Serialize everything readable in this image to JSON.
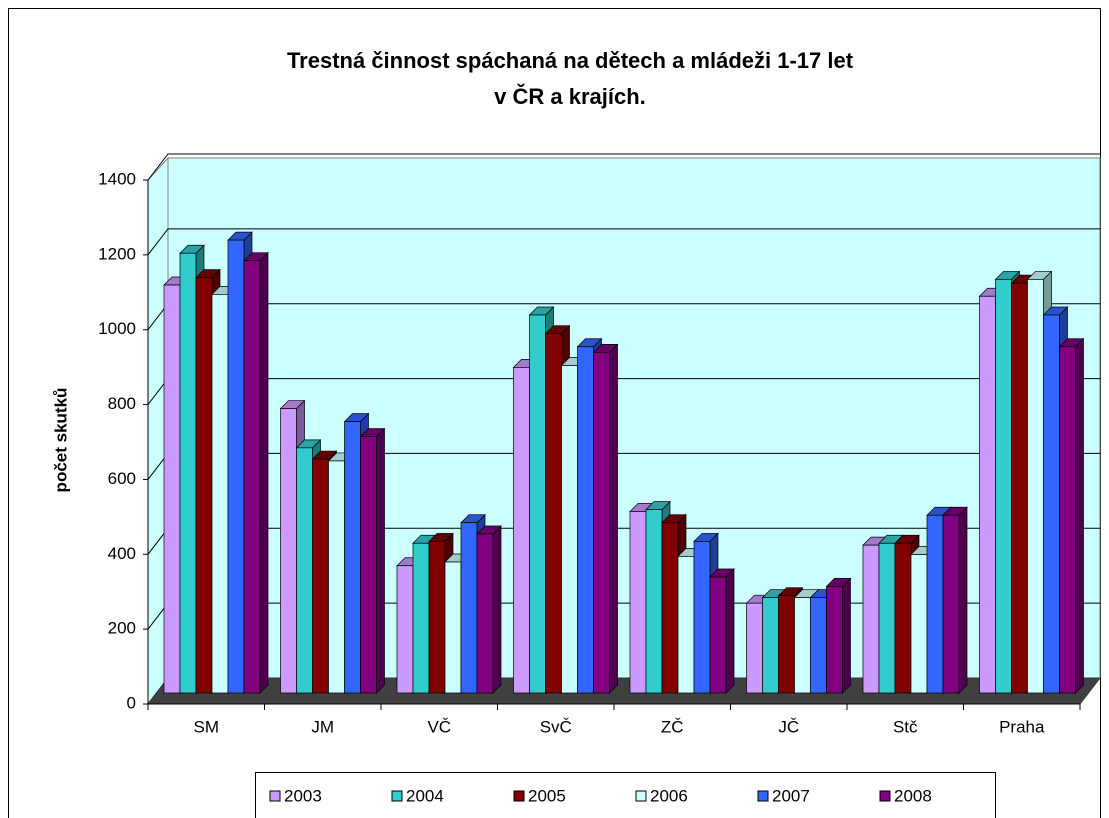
{
  "chart_data": {
    "type": "bar3d",
    "title": "Trestná činnost spáchaná na dětech a mládeži 1-17 let",
    "subtitle": "v ČR a krajích.",
    "y_label": "počet skutků",
    "categories": [
      "SM",
      "JM",
      "VČ",
      "SvČ",
      "ZČ",
      "JČ",
      "Stč",
      "Praha"
    ],
    "series": [
      {
        "name": "2003",
        "color": "#cc99ff",
        "values": [
          1090,
          760,
          340,
          870,
          485,
          240,
          395,
          1060
        ]
      },
      {
        "name": "2004",
        "color": "#33cccc",
        "values": [
          1175,
          655,
          400,
          1010,
          490,
          255,
          400,
          1105
        ]
      },
      {
        "name": "2005",
        "color": "#800000",
        "values": [
          1110,
          625,
          405,
          960,
          455,
          260,
          400,
          1095
        ]
      },
      {
        "name": "2006",
        "color": "#ccffff",
        "values": [
          1065,
          620,
          350,
          875,
          365,
          255,
          370,
          1105
        ]
      },
      {
        "name": "2007",
        "color": "#3366ff",
        "values": [
          1210,
          725,
          455,
          925,
          405,
          255,
          475,
          1010
        ]
      },
      {
        "name": "2008",
        "color": "#800080",
        "values": [
          1155,
          685,
          425,
          910,
          310,
          285,
          475,
          925
        ]
      }
    ],
    "ylim": [
      0,
      1400
    ],
    "yticks": [
      0,
      200,
      400,
      600,
      800,
      1000,
      1200,
      1400
    ],
    "grid": true,
    "legend": "bottom"
  }
}
